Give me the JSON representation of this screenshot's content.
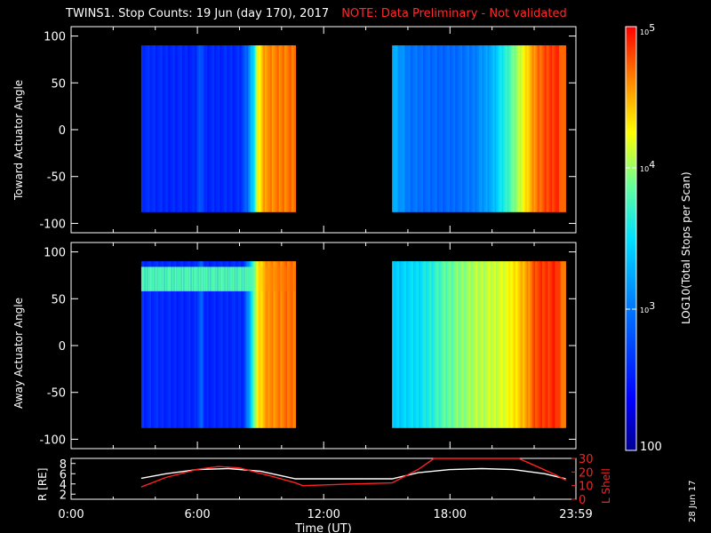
{
  "title": {
    "main": "TWINS1. Stop Counts: 19 Jun (day 170), 2017",
    "note": "NOTE: Data Preliminary - Not validated"
  },
  "date_stamp": "28 Jun 17",
  "colors": {
    "background": "#000000",
    "axes": "#ffffff",
    "note": "#ff2a2a",
    "r_line": "#ffffff",
    "lshell_line": "#ff2020"
  },
  "colorbar": {
    "label": "LOG10(Total Stops per Scan)",
    "ticks": [
      {
        "label": "10^5",
        "log": 5
      },
      {
        "label": "10^4",
        "log": 4
      },
      {
        "label": "10^3",
        "log": 3
      },
      {
        "label": "100",
        "log": 2
      }
    ],
    "range_log": [
      2,
      5
    ]
  },
  "chart_data": [
    {
      "type": "heatmap",
      "ylabel": "Toward Actuator Angle",
      "ylim": [
        -110,
        110
      ],
      "yticks": [
        100,
        50,
        0,
        -50,
        -100
      ],
      "angle_range": [
        -88,
        90
      ],
      "segments": [
        {
          "start": "03:20",
          "end": "10:40",
          "log_profile": [
            [
              "03:20",
              2.6
            ],
            [
              "05:50",
              2.55
            ],
            [
              "06:10",
              2.9
            ],
            [
              "06:20",
              2.55
            ],
            [
              "08:00",
              2.6
            ],
            [
              "08:20",
              2.9
            ],
            [
              "08:40",
              3.6
            ],
            [
              "08:50",
              4.2
            ],
            [
              "09:10",
              4.6
            ],
            [
              "10:40",
              4.7
            ]
          ]
        },
        {
          "start": "15:15",
          "end": "23:30",
          "log_profile": [
            [
              "15:15",
              3.3
            ],
            [
              "16:00",
              3.0
            ],
            [
              "17:30",
              2.9
            ],
            [
              "19:00",
              3.0
            ],
            [
              "20:00",
              3.3
            ],
            [
              "21:00",
              3.9
            ],
            [
              "21:40",
              4.4
            ],
            [
              "22:10",
              4.7
            ],
            [
              "23:00",
              4.9
            ],
            [
              "23:30",
              4.6
            ]
          ]
        }
      ]
    },
    {
      "type": "heatmap",
      "ylabel": "Away Actuator Angle",
      "ylim": [
        -110,
        110
      ],
      "yticks": [
        100,
        50,
        0,
        -50,
        -100
      ],
      "angle_range": [
        -88,
        90
      ],
      "segments": [
        {
          "start": "03:20",
          "end": "10:40",
          "log_profile": [
            [
              "03:20",
              2.6
            ],
            [
              "05:50",
              2.55
            ],
            [
              "06:10",
              2.9
            ],
            [
              "06:20",
              2.55
            ],
            [
              "08:10",
              2.6
            ],
            [
              "08:30",
              3.4
            ],
            [
              "08:50",
              4.3
            ],
            [
              "09:20",
              4.6
            ],
            [
              "10:40",
              4.7
            ]
          ],
          "high_band": {
            "angles": [
              58,
              84
            ],
            "log": 3.8
          }
        },
        {
          "start": "15:15",
          "end": "23:30",
          "log_profile": [
            [
              "15:15",
              3.4
            ],
            [
              "16:30",
              3.5
            ],
            [
              "17:40",
              3.8
            ],
            [
              "18:40",
              4.0
            ],
            [
              "19:40",
              4.1
            ],
            [
              "20:40",
              4.2
            ],
            [
              "21:30",
              4.5
            ],
            [
              "22:00",
              4.8
            ],
            [
              "23:00",
              4.9
            ],
            [
              "23:30",
              4.6
            ]
          ]
        }
      ]
    },
    {
      "type": "line",
      "xlabel": "Time (UT)",
      "xticks": [
        "0:00",
        "6:00",
        "12:00",
        "18:00",
        "23:59"
      ],
      "xlim": [
        "00:00",
        "23:59"
      ],
      "ylabel_left": "R [RE]",
      "ylabel_right": "L Shell",
      "yticks_left": [
        2,
        4,
        6,
        8
      ],
      "yticks_right": [
        0,
        10,
        20,
        30
      ],
      "series": [
        {
          "name": "R [RE]",
          "axis": "left",
          "points": [
            [
              "03:20",
              5.1
            ],
            [
              "04:30",
              6.0
            ],
            [
              "06:00",
              6.8
            ],
            [
              "07:30",
              7.0
            ],
            [
              "09:00",
              6.5
            ],
            [
              "10:40",
              5.0
            ],
            [
              "12:00",
              5.0
            ],
            [
              "15:15",
              5.0
            ],
            [
              "16:30",
              6.2
            ],
            [
              "18:00",
              6.8
            ],
            [
              "19:30",
              7.0
            ],
            [
              "21:00",
              6.8
            ],
            [
              "22:30",
              6.0
            ],
            [
              "23:30",
              5.0
            ]
          ]
        },
        {
          "name": "L Shell",
          "axis": "right",
          "points": [
            [
              "03:20",
              9
            ],
            [
              "04:30",
              16
            ],
            [
              "06:00",
              22
            ],
            [
              "07:00",
              24
            ],
            [
              "08:00",
              23
            ],
            [
              "09:30",
              17
            ],
            [
              "10:40",
              12
            ],
            [
              "11:00",
              10
            ],
            [
              "13:00",
              11
            ],
            [
              "15:15",
              12
            ],
            [
              "16:30",
              22
            ],
            [
              "17:15",
              30
            ],
            [
              "21:15",
              30
            ],
            [
              "22:00",
              25
            ],
            [
              "23:00",
              18
            ],
            [
              "23:30",
              14
            ]
          ]
        }
      ]
    }
  ]
}
